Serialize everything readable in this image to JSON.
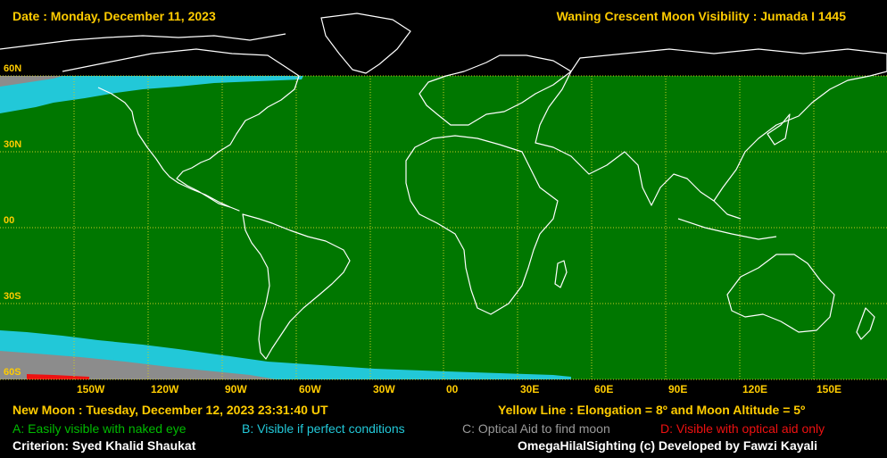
{
  "header": {
    "date": "Date : Monday, December 11, 2023",
    "title": "Waning Crescent Moon Visibility : Jumada I 1445"
  },
  "latitudes": [
    "60N",
    "30N",
    "00",
    "30S",
    "60S"
  ],
  "longitudes": [
    "150W",
    "120W",
    "90W",
    "60W",
    "30W",
    "00",
    "30E",
    "60E",
    "90E",
    "120E",
    "150E"
  ],
  "footer": {
    "new_moon": "New Moon : Tuesday, December 12, 2023  23:31:40  UT",
    "yellow_line": "Yellow Line : Elongation = 8º and Moon Altitude = 5º",
    "legend_a": "A: Easily visible with naked eye",
    "legend_b": "B: Visible if perfect conditions",
    "legend_c": "C: Optical Aid to find moon",
    "legend_d": "D: Visible with optical aid only",
    "criterion": "Criterion: Syed Khalid Shaukat",
    "credit": "OmegaHilalSighting  (c)  Developed by Fawzi Kayali"
  },
  "colors": {
    "zone_a": "#007700",
    "zone_b": "#22c8d8",
    "zone_c": "#8c8c8c",
    "zone_d": "#ee1111",
    "grid": "#cccc22",
    "coast": "#ffffff",
    "text": "#ffcc00"
  }
}
